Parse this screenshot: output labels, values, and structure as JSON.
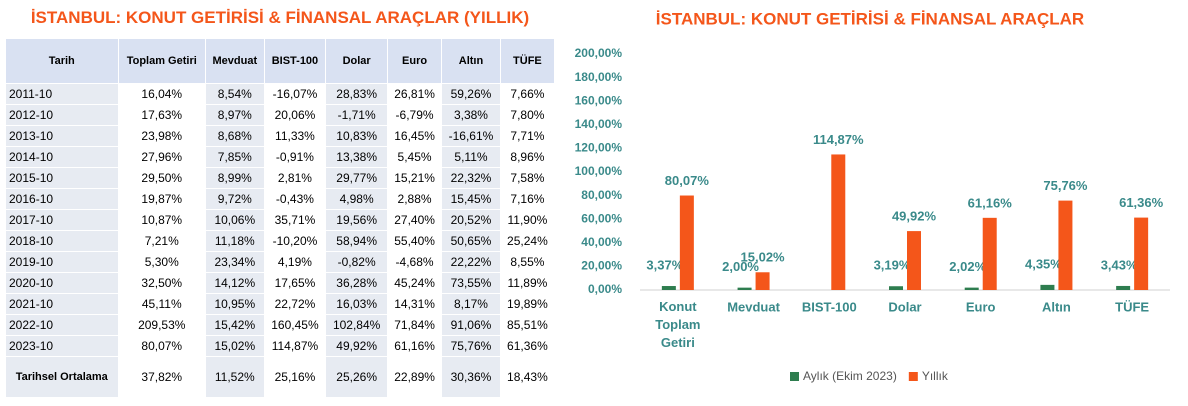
{
  "table": {
    "title": "İSTANBUL: KONUT GETİRİSİ & FİNANSAL ARAÇLAR (YILLIK)",
    "header": [
      "Tarih",
      "Toplam Getiri",
      "Mevduat",
      "BIST-100",
      "Dolar",
      "Euro",
      "Altın",
      "TÜFE"
    ],
    "rows": [
      [
        "2011-10",
        "16,04%",
        "8,54%",
        "-16,07%",
        "28,83%",
        "26,81%",
        "59,26%",
        "7,66%"
      ],
      [
        "2012-10",
        "17,63%",
        "8,97%",
        "20,06%",
        "-1,71%",
        "-6,79%",
        "3,38%",
        "7,80%"
      ],
      [
        "2013-10",
        "23,98%",
        "8,68%",
        "11,33%",
        "10,83%",
        "16,45%",
        "-16,61%",
        "7,71%"
      ],
      [
        "2014-10",
        "27,96%",
        "7,85%",
        "-0,91%",
        "13,38%",
        "5,45%",
        "5,11%",
        "8,96%"
      ],
      [
        "2015-10",
        "29,50%",
        "8,99%",
        "2,81%",
        "29,77%",
        "15,21%",
        "22,32%",
        "7,58%"
      ],
      [
        "2016-10",
        "19,87%",
        "9,72%",
        "-0,43%",
        "4,98%",
        "2,88%",
        "15,45%",
        "7,16%"
      ],
      [
        "2017-10",
        "10,87%",
        "10,06%",
        "35,71%",
        "19,56%",
        "27,40%",
        "20,52%",
        "11,90%"
      ],
      [
        "2018-10",
        "7,21%",
        "11,18%",
        "-10,20%",
        "58,94%",
        "55,40%",
        "50,65%",
        "25,24%"
      ],
      [
        "2019-10",
        "5,30%",
        "23,34%",
        "4,19%",
        "-0,82%",
        "-4,68%",
        "22,22%",
        "8,55%"
      ],
      [
        "2020-10",
        "32,50%",
        "14,12%",
        "17,65%",
        "36,28%",
        "45,24%",
        "73,55%",
        "11,89%"
      ],
      [
        "2021-10",
        "45,11%",
        "10,95%",
        "22,72%",
        "16,03%",
        "14,31%",
        "8,17%",
        "19,89%"
      ],
      [
        "2022-10",
        "209,53%",
        "15,42%",
        "160,45%",
        "102,84%",
        "71,84%",
        "91,06%",
        "85,51%"
      ],
      [
        "2023-10",
        "80,07%",
        "15,02%",
        "114,87%",
        "49,92%",
        "61,16%",
        "75,76%",
        "61,36%"
      ],
      [
        "Tarihsel Ortalama",
        "37,82%",
        "11,52%",
        "25,16%",
        "25,26%",
        "22,89%",
        "30,36%",
        "18,43%"
      ]
    ]
  },
  "chart_data": {
    "type": "bar",
    "title": "İSTANBUL: KONUT GETİRİSİ & FİNANSAL ARAÇLAR",
    "categories": [
      "Konut Toplam Getiri",
      "Mevduat",
      "BIST-100",
      "Dolar",
      "Euro",
      "Altın",
      "TÜFE"
    ],
    "series": [
      {
        "name": "Aylık (Ekim 2023)",
        "color": "#2e7d4f",
        "values": [
          3.37,
          2.0,
          null,
          3.19,
          2.02,
          4.35,
          3.43
        ],
        "value_labels": [
          "3,37%",
          "2,00%",
          null,
          "3,19%",
          "2,02%",
          "4,35%",
          "3,43%"
        ]
      },
      {
        "name": "Yıllık",
        "color": "#f4561a",
        "values": [
          80.07,
          15.02,
          114.87,
          49.92,
          61.16,
          75.76,
          61.36
        ],
        "value_labels": [
          "80,07%",
          "15,02%",
          "114,87%",
          "49,92%",
          "61,16%",
          "75,76%",
          "61,36%"
        ]
      }
    ],
    "ylim": [
      0,
      200
    ],
    "yticks": [
      {
        "value": 0,
        "label": "0,00%"
      },
      {
        "value": 20,
        "label": "20,00%"
      },
      {
        "value": 40,
        "label": "40,00%"
      },
      {
        "value": 60,
        "label": "60,00%"
      },
      {
        "value": 80,
        "label": "80,00%"
      },
      {
        "value": 100,
        "label": "100,00%"
      },
      {
        "value": 120,
        "label": "120,00%"
      },
      {
        "value": 140,
        "label": "140,00%"
      },
      {
        "value": 160,
        "label": "160,00%"
      },
      {
        "value": 180,
        "label": "180,00%"
      },
      {
        "value": 200,
        "label": "200,00%"
      }
    ]
  }
}
